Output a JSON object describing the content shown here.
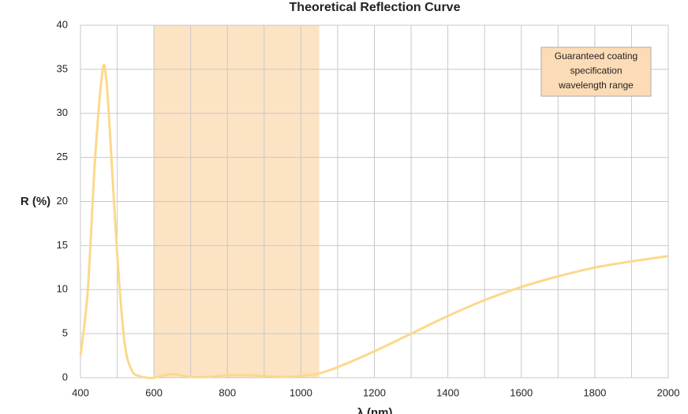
{
  "chart_data": {
    "type": "line",
    "title": "Theoretical Reflection Curve",
    "x_label": "λ (nm)",
    "y_label": "R (%)",
    "x": [
      400,
      420,
      440,
      460,
      470,
      480,
      500,
      520,
      540,
      560,
      580,
      600,
      650,
      700,
      750,
      800,
      850,
      900,
      950,
      1000,
      1050,
      1100,
      1200,
      1300,
      1400,
      1500,
      1600,
      1700,
      1800,
      1900,
      2000
    ],
    "series": [
      {
        "name": "R",
        "color": "#fbd98a",
        "values": [
          2.5,
          10,
          25,
          34.8,
          34,
          28,
          14,
          4,
          0.8,
          0.2,
          0,
          0,
          0.4,
          0.1,
          0.1,
          0.3,
          0.3,
          0.2,
          0.1,
          0.2,
          0.5,
          1.2,
          3,
          5,
          7,
          8.8,
          10.3,
          11.5,
          12.5,
          13.2,
          13.8
        ]
      }
    ],
    "xlim": [
      400,
      2000
    ],
    "ylim": [
      0,
      40
    ],
    "xticks": [
      400,
      600,
      800,
      1000,
      1200,
      1400,
      1600,
      1800,
      2000
    ],
    "x_minor_ticks": [
      500,
      700,
      900,
      1100,
      1300,
      1500,
      1700,
      1900
    ],
    "yticks": [
      0,
      5,
      10,
      15,
      20,
      25,
      30,
      35,
      40
    ],
    "grid": true,
    "band": {
      "range": [
        600,
        1050
      ],
      "color": "#fce3c4"
    },
    "annotation": {
      "lines": [
        "Guaranteed coating",
        "specification",
        "wavelength range"
      ],
      "color": "#fcdcb6"
    }
  }
}
